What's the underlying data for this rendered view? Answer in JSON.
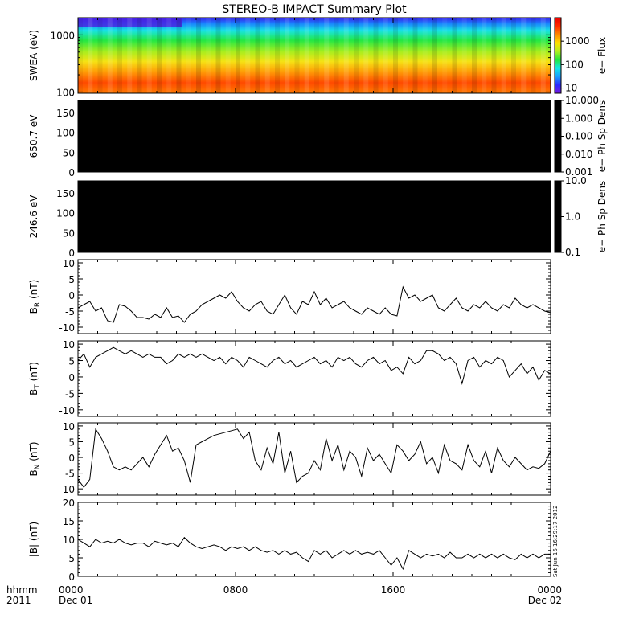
{
  "title": "STEREO-B IMPACT Summary Plot",
  "stamp": "Sat Jun 16 16:29:17 2012",
  "chart_data": [
    {
      "id": "swea",
      "type": "heatmap",
      "ylabel": "SWEA (eV)",
      "yscale": "log",
      "ylim": [
        95,
        2000
      ],
      "yticks": [
        {
          "v": 100,
          "label": "100"
        },
        {
          "v": 1000,
          "label": "1000"
        }
      ],
      "colorbar": {
        "label": "e− Flux",
        "scale": "log",
        "range": [
          6,
          10000
        ],
        "ticks": [
          {
            "v": 10,
            "label": "10"
          },
          {
            "v": 100,
            "label": "100"
          },
          {
            "v": 1000,
            "label": "1000"
          }
        ],
        "colors": [
          "#7a18e0",
          "#2a2aff",
          "#1aa0ff",
          "#12e8e8",
          "#22e83a",
          "#b4f01e",
          "#ffe000",
          "#ff8800",
          "#ff2a00",
          "#e80000"
        ]
      }
    },
    {
      "id": "pad650",
      "type": "heatmap",
      "ylabel": "650.7 eV",
      "ylim": [
        0,
        180
      ],
      "yticks": [
        0,
        50,
        100,
        150
      ],
      "fill": "#000000",
      "colorbar": {
        "label": "e− Ph Sp Dens",
        "scale": "log",
        "range": [
          0.001,
          10
        ],
        "ticks": [
          {
            "v": 10,
            "label": "10.000"
          },
          {
            "v": 1,
            "label": "1.000"
          },
          {
            "v": 0.1,
            "label": "0.100"
          },
          {
            "v": 0.01,
            "label": "0.010"
          },
          {
            "v": 0.001,
            "label": "0.001"
          }
        ]
      }
    },
    {
      "id": "pad246",
      "type": "heatmap",
      "ylabel": "246.6 eV",
      "ylim": [
        0,
        180
      ],
      "yticks": [
        0,
        50,
        100,
        150
      ],
      "fill": "#000000",
      "colorbar": {
        "label": "e− Ph Sp Dens",
        "scale": "log",
        "range": [
          0.1,
          10
        ],
        "ticks": [
          {
            "v": 10,
            "label": "10.0"
          },
          {
            "v": 1,
            "label": "1.0"
          },
          {
            "v": 0.1,
            "label": "0.1"
          }
        ]
      }
    },
    {
      "id": "br",
      "type": "line",
      "ylabel": "B",
      "ysub": "R",
      "yunit": "(nT)",
      "ylim": [
        -12,
        11
      ],
      "yticks": [
        -10,
        -5,
        0,
        5,
        10
      ],
      "x": [
        0.0,
        0.3,
        0.6,
        0.9,
        1.2,
        1.5,
        1.8,
        2.1,
        2.4,
        2.7,
        3.0,
        3.3,
        3.6,
        3.9,
        4.2,
        4.5,
        4.8,
        5.1,
        5.4,
        5.7,
        6.0,
        6.3,
        6.6,
        6.9,
        7.2,
        7.5,
        7.8,
        8.1,
        8.4,
        8.7,
        9.0,
        9.3,
        9.6,
        9.9,
        10.2,
        10.5,
        10.8,
        11.1,
        11.4,
        11.7,
        12.0,
        12.3,
        12.6,
        12.9,
        13.2,
        13.5,
        13.8,
        14.1,
        14.4,
        14.7,
        15.0,
        15.3,
        15.6,
        15.9,
        16.2,
        16.5,
        16.8,
        17.1,
        17.4,
        17.7,
        18.0,
        18.3,
        18.6,
        18.9,
        19.2,
        19.5,
        19.8,
        20.1,
        20.4,
        20.7,
        21.0,
        21.3,
        21.6,
        21.9,
        22.2,
        22.5,
        22.8,
        23.1,
        23.4,
        23.7,
        24.0
      ],
      "y": [
        -4,
        -3,
        -2,
        -5,
        -4,
        -8,
        -8.5,
        -3,
        -3.5,
        -5,
        -7,
        -7,
        -7.5,
        -6,
        -7,
        -4,
        -7,
        -6.5,
        -8.5,
        -6,
        -5,
        -3,
        -2,
        -1,
        0,
        -1,
        1,
        -2,
        -4,
        -5,
        -3,
        -2,
        -5,
        -6,
        -3,
        0,
        -4,
        -6,
        -2,
        -3,
        1,
        -3,
        -1,
        -4,
        -3,
        -2,
        -4,
        -5,
        -6,
        -4,
        -5,
        -6,
        -4,
        -6,
        -6.5,
        2.5,
        -1,
        0,
        -2,
        -1,
        0,
        -4,
        -5,
        -3,
        -1,
        -4,
        -5,
        -3,
        -4,
        -2,
        -4,
        -5,
        -3,
        -4,
        -1,
        -3,
        -4,
        -3,
        -4,
        -5,
        -5.5
      ]
    },
    {
      "id": "bt",
      "type": "line",
      "ylabel": "B",
      "ysub": "T",
      "yunit": "(nT)",
      "ylim": [
        -12,
        11
      ],
      "yticks": [
        -10,
        -5,
        0,
        5,
        10
      ],
      "x": [
        0.0,
        0.3,
        0.6,
        0.9,
        1.2,
        1.5,
        1.8,
        2.1,
        2.4,
        2.7,
        3.0,
        3.3,
        3.6,
        3.9,
        4.2,
        4.5,
        4.8,
        5.1,
        5.4,
        5.7,
        6.0,
        6.3,
        6.6,
        6.9,
        7.2,
        7.5,
        7.8,
        8.1,
        8.4,
        8.7,
        9.0,
        9.3,
        9.6,
        9.9,
        10.2,
        10.5,
        10.8,
        11.1,
        11.4,
        11.7,
        12.0,
        12.3,
        12.6,
        12.9,
        13.2,
        13.5,
        13.8,
        14.1,
        14.4,
        14.7,
        15.0,
        15.3,
        15.6,
        15.9,
        16.2,
        16.5,
        16.8,
        17.1,
        17.4,
        17.7,
        18.0,
        18.3,
        18.6,
        18.9,
        19.2,
        19.5,
        19.8,
        20.1,
        20.4,
        20.7,
        21.0,
        21.3,
        21.6,
        21.9,
        22.2,
        22.5,
        22.8,
        23.1,
        23.4,
        23.7,
        24.0
      ],
      "y": [
        5,
        7,
        3,
        6,
        7,
        8,
        9,
        8,
        7,
        8,
        7,
        6,
        7,
        6,
        6,
        4,
        5,
        7,
        6,
        7,
        6,
        7,
        6,
        5,
        6,
        4,
        6,
        5,
        3,
        6,
        5,
        4,
        3,
        5,
        6,
        4,
        5,
        3,
        4,
        5,
        6,
        4,
        5,
        3,
        6,
        5,
        6,
        4,
        3,
        5,
        6,
        4,
        5,
        2,
        3,
        1,
        6,
        4,
        5,
        8,
        8,
        7,
        5,
        6,
        4,
        -2,
        5,
        6,
        3,
        5,
        4,
        6,
        5,
        0,
        2,
        4,
        1,
        3,
        -1,
        2,
        1
      ]
    },
    {
      "id": "bn",
      "type": "line",
      "ylabel": "B",
      "ysub": "N",
      "yunit": "(nT)",
      "ylim": [
        -12,
        11
      ],
      "yticks": [
        -10,
        -5,
        0,
        5,
        10
      ],
      "x": [
        0.0,
        0.3,
        0.6,
        0.9,
        1.2,
        1.5,
        1.8,
        2.1,
        2.4,
        2.7,
        3.0,
        3.3,
        3.6,
        3.9,
        4.2,
        4.5,
        4.8,
        5.1,
        5.4,
        5.7,
        6.0,
        6.3,
        6.6,
        6.9,
        7.2,
        7.5,
        7.8,
        8.1,
        8.4,
        8.7,
        9.0,
        9.3,
        9.6,
        9.9,
        10.2,
        10.5,
        10.8,
        11.1,
        11.4,
        11.7,
        12.0,
        12.3,
        12.6,
        12.9,
        13.2,
        13.5,
        13.8,
        14.1,
        14.4,
        14.7,
        15.0,
        15.3,
        15.6,
        15.9,
        16.2,
        16.5,
        16.8,
        17.1,
        17.4,
        17.7,
        18.0,
        18.3,
        18.6,
        18.9,
        19.2,
        19.5,
        19.8,
        20.1,
        20.4,
        20.7,
        21.0,
        21.3,
        21.6,
        21.9,
        22.2,
        22.5,
        22.8,
        23.1,
        23.4,
        23.7,
        24.0
      ],
      "y": [
        -7,
        -9.5,
        -7,
        9,
        6,
        2,
        -3,
        -4,
        -3,
        -4,
        -2,
        0,
        -3,
        1,
        4,
        7,
        2,
        3,
        -1,
        -8,
        4,
        5,
        6,
        7,
        7.5,
        8,
        8.5,
        9,
        6,
        8,
        -1,
        -4,
        3,
        -2,
        8,
        -5,
        2,
        -8,
        -6,
        -5,
        -1,
        -4,
        6,
        -1,
        4,
        -4,
        2,
        0,
        -6,
        3,
        -1,
        1,
        -2,
        -5,
        4,
        2,
        -1,
        1,
        5,
        -2,
        0,
        -5,
        4,
        -1,
        -2,
        -4,
        4,
        -1,
        -3,
        2,
        -5,
        3,
        -1,
        -3,
        0,
        -2,
        -4,
        -3,
        -3.5,
        -2,
        2
      ]
    },
    {
      "id": "bmag",
      "type": "line",
      "ylabel": "|B| (nT)",
      "ylim": [
        0,
        20
      ],
      "yticks": [
        0,
        5,
        10,
        15,
        20
      ],
      "x": [
        0.0,
        0.3,
        0.6,
        0.9,
        1.2,
        1.5,
        1.8,
        2.1,
        2.4,
        2.7,
        3.0,
        3.3,
        3.6,
        3.9,
        4.2,
        4.5,
        4.8,
        5.1,
        5.4,
        5.7,
        6.0,
        6.3,
        6.6,
        6.9,
        7.2,
        7.5,
        7.8,
        8.1,
        8.4,
        8.7,
        9.0,
        9.3,
        9.6,
        9.9,
        10.2,
        10.5,
        10.8,
        11.1,
        11.4,
        11.7,
        12.0,
        12.3,
        12.6,
        12.9,
        13.2,
        13.5,
        13.8,
        14.1,
        14.4,
        14.7,
        15.0,
        15.3,
        15.6,
        15.9,
        16.2,
        16.5,
        16.8,
        17.1,
        17.4,
        17.7,
        18.0,
        18.3,
        18.6,
        18.9,
        19.2,
        19.5,
        19.8,
        20.1,
        20.4,
        20.7,
        21.0,
        21.3,
        21.6,
        21.9,
        22.2,
        22.5,
        22.8,
        23.1,
        23.4,
        23.7,
        24.0
      ],
      "y": [
        10,
        9,
        8,
        10,
        9,
        9.5,
        9,
        10,
        9,
        8.5,
        9,
        9,
        8,
        9.5,
        9,
        8.5,
        9,
        8,
        10.5,
        9,
        8,
        7.5,
        8,
        8.5,
        8,
        7,
        8,
        7.5,
        8,
        7,
        8,
        7,
        6.5,
        7,
        6,
        7,
        6,
        6.5,
        5,
        4,
        7,
        6,
        7,
        5,
        6,
        7,
        6,
        7,
        6,
        6.5,
        6,
        7,
        5,
        3,
        5,
        2,
        7,
        6,
        5,
        6,
        5.5,
        6,
        5,
        6.5,
        5,
        5,
        6,
        5,
        6,
        5,
        6,
        5,
        6,
        5,
        4.5,
        6,
        5,
        6,
        5,
        6,
        6
      ]
    }
  ],
  "xaxis": {
    "range": [
      0,
      24
    ],
    "ticks": [
      {
        "v": 0,
        "label": "0000"
      },
      {
        "v": 8,
        "label": "0800"
      },
      {
        "v": 16,
        "label": "1600"
      },
      {
        "v": 24,
        "label": "0000"
      }
    ],
    "date_labels": [
      {
        "v": 0,
        "label": "Dec 01"
      },
      {
        "v": 24,
        "label": "Dec 02"
      }
    ],
    "legend_top": "hhmm",
    "legend_bottom": "2011"
  }
}
